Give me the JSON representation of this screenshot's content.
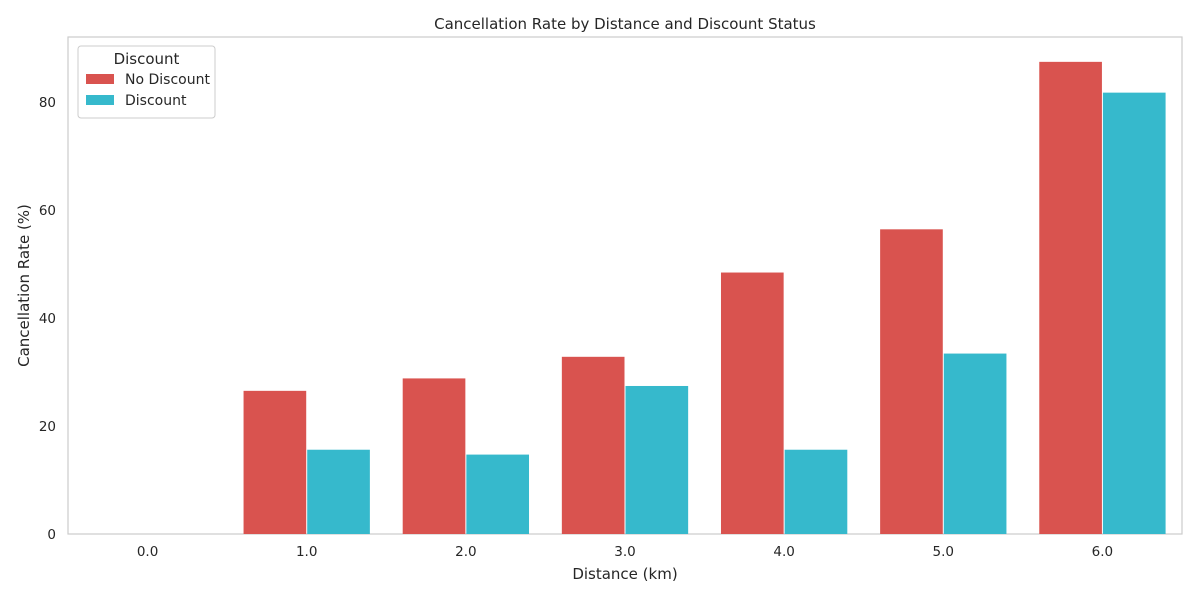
{
  "chart_data": {
    "type": "bar",
    "title": "Cancellation Rate by Distance and Discount Status",
    "xlabel": "Distance (km)",
    "ylabel": "Cancellation Rate (%)",
    "categories": [
      "0.0",
      "1.0",
      "2.0",
      "3.0",
      "4.0",
      "5.0",
      "6.0"
    ],
    "series": [
      {
        "name": "No Discount",
        "color": "#d9534f",
        "values": [
          0,
          26.5,
          28.8,
          32.8,
          48.4,
          56.4,
          87.4
        ]
      },
      {
        "name": "Discount",
        "color": "#36b9cc",
        "values": [
          0,
          15.6,
          14.7,
          27.4,
          15.6,
          33.4,
          81.7
        ]
      }
    ],
    "ylim": [
      0,
      92
    ],
    "yticks": [
      0,
      20,
      40,
      60,
      80
    ],
    "ytick_labels": [
      "0",
      "20",
      "40",
      "60",
      "80"
    ],
    "grid": false,
    "legend": {
      "title": "Discount",
      "placement": "top-left"
    }
  }
}
